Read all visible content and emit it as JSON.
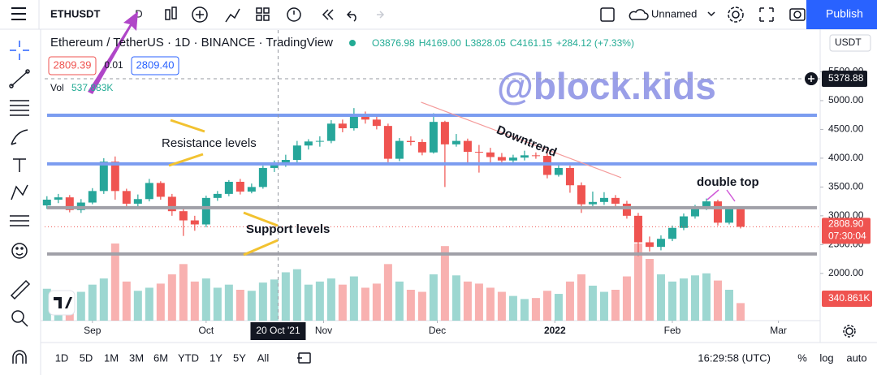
{
  "ui": {
    "symbol": "ETHUSDT",
    "interval": "D",
    "layout_name": "Unnamed",
    "publish": "Publish",
    "legend_title": "Ethereum / TetherUS · 1D · BINANCE · TradingView",
    "ohlc": [
      "O3876.98",
      "H4169.00",
      "L3828.05",
      "C4161.15",
      "+284.12 (+7.33%)"
    ],
    "sell": "2809.39",
    "spread": "0.01",
    "buy": "2809.40",
    "vol_label": "Vol",
    "vol_value": "537.883K",
    "currency": "USDT",
    "timeframes": [
      "1D",
      "5D",
      "1M",
      "3M",
      "6M",
      "YTD",
      "1Y",
      "5Y",
      "All"
    ],
    "clock": "16:29:58 (UTC)",
    "scale_options": [
      "%",
      "log",
      "auto"
    ]
  },
  "chart_data": {
    "type": "candlestick",
    "watermark": "@block.kids",
    "categories": [
      null,
      null,
      null,
      null,
      null,
      null,
      null,
      null,
      null,
      null,
      null,
      null,
      null,
      null,
      null,
      null,
      null,
      null,
      null,
      null,
      null,
      null,
      null,
      null,
      null,
      null,
      null,
      null,
      null,
      null,
      null,
      null,
      null,
      null,
      null,
      null,
      null,
      null,
      null,
      null,
      null,
      null,
      null,
      null,
      null,
      null,
      null,
      null,
      null,
      null,
      null,
      null,
      null,
      null,
      null,
      null,
      null,
      null,
      null,
      null,
      null,
      null
    ],
    "open": [
      3180,
      3280,
      3320,
      3100,
      3230,
      3430,
      3940,
      3430,
      3210,
      3290,
      3570,
      3330,
      3080,
      2920,
      2850,
      3310,
      3380,
      3590,
      3420,
      3500,
      3830,
      3880,
      3970,
      4220,
      4290,
      4300,
      4600,
      4520,
      4730,
      4670,
      4560,
      3990,
      4300,
      4280,
      4100,
      4630,
      4240,
      4300,
      4110,
      4100,
      4020,
      3960,
      4010,
      4050,
      4040,
      3710,
      3830,
      3530,
      3200,
      3240,
      3310,
      3210,
      3000,
      2540,
      2460,
      2600,
      2790,
      2990,
      3140,
      3250,
      2880,
      3120
    ],
    "high": [
      3340,
      3380,
      3360,
      3290,
      3480,
      4000,
      4030,
      3470,
      3370,
      3640,
      3600,
      3380,
      3120,
      3000,
      3350,
      3430,
      3620,
      3640,
      3560,
      3870,
      3960,
      4060,
      4300,
      4330,
      4380,
      4660,
      4670,
      4870,
      4810,
      4720,
      4600,
      4350,
      4380,
      4330,
      4780,
      4650,
      4420,
      4340,
      4230,
      4180,
      4090,
      4060,
      4130,
      4100,
      4090,
      3880,
      3870,
      3580,
      3420,
      3410,
      3360,
      3260,
      3050,
      2640,
      2660,
      2830,
      3040,
      3190,
      3300,
      3280,
      3160,
      3150
    ],
    "low": [
      3120,
      3220,
      3060,
      3050,
      3200,
      3380,
      3280,
      3150,
      3160,
      3250,
      3280,
      3000,
      2650,
      2740,
      2800,
      3260,
      3340,
      3370,
      3390,
      3470,
      3760,
      3850,
      3920,
      4150,
      4200,
      4260,
      4450,
      4480,
      4600,
      4500,
      3930,
      3950,
      4220,
      4050,
      4080,
      3500,
      4200,
      3920,
      3750,
      3880,
      3900,
      3920,
      3960,
      3990,
      3650,
      3680,
      3400,
      3050,
      3120,
      3190,
      3150,
      2950,
      2300,
      2380,
      2400,
      2560,
      2750,
      2950,
      3100,
      2830,
      2850,
      2780
    ],
    "close": [
      3280,
      3320,
      3100,
      3230,
      3430,
      3940,
      3430,
      3210,
      3290,
      3570,
      3330,
      3080,
      2920,
      2850,
      3310,
      3380,
      3590,
      3420,
      3500,
      3830,
      3880,
      3970,
      4220,
      4290,
      4300,
      4600,
      4520,
      4730,
      4670,
      4560,
      3990,
      4300,
      4280,
      4100,
      4630,
      4240,
      4300,
      4110,
      4100,
      4020,
      3960,
      4010,
      4050,
      4040,
      3710,
      3830,
      3530,
      3200,
      3240,
      3310,
      3210,
      3000,
      2540,
      2460,
      2600,
      2790,
      2990,
      3140,
      3250,
      2880,
      3120,
      2808.9
    ],
    "volume": [
      620000,
      540000,
      480000,
      560000,
      700000,
      820000,
      1500000,
      760000,
      580000,
      640000,
      720000,
      900000,
      1100000,
      760000,
      820000,
      640000,
      700000,
      600000,
      580000,
      740000,
      800000,
      940000,
      1000000,
      700000,
      760000,
      820000,
      700000,
      860000,
      640000,
      720000,
      1100000,
      760000,
      600000,
      560000,
      900000,
      1450000,
      880000,
      760000,
      720000,
      640000,
      560000,
      480000,
      420000,
      440000,
      580000,
      520000,
      760000,
      900000,
      680000,
      560000,
      600000,
      860000,
      1500000,
      1200000,
      900000,
      760000,
      820000,
      880000,
      920000,
      780000,
      600000,
      340861
    ],
    "up_color": "#26a69a",
    "down_color": "#ef5350",
    "xlim": [
      -0.2,
      68
    ],
    "xticks": [
      {
        "value": 4,
        "label": "Sep"
      },
      {
        "value": 14,
        "label": "Oct"
      },
      {
        "value": 24.33,
        "label": "Nov"
      },
      {
        "value": 34.33,
        "label": "Dec"
      },
      {
        "value": 44.67,
        "label": "2022"
      },
      {
        "value": 55,
        "label": "Feb"
      },
      {
        "value": 64.33,
        "label": "Mar"
      }
    ],
    "ylim": [
      1180,
      6225
    ],
    "yticks": [
      {
        "value": 2000,
        "label": "2000.00"
      },
      {
        "value": 2500,
        "label": "2500.00"
      },
      {
        "value": 3000,
        "label": "3000.00"
      },
      {
        "value": 3500,
        "label": "3500.00"
      },
      {
        "value": 4000,
        "label": "4000.00"
      },
      {
        "value": 4500,
        "label": "4500.00"
      },
      {
        "value": 5000,
        "label": "5000.00"
      },
      {
        "value": 5500,
        "label": "5500.00"
      }
    ],
    "price_tag": "2808.90",
    "countdown": "07:30:04",
    "volume_tag": "340.861K",
    "crosshair": {
      "x": 20.33,
      "x_label": "20 Oct '21",
      "price": 5378.88,
      "price_label": "5378.88"
    },
    "hlines": [
      {
        "value": 4746,
        "color": "#7b9cf0"
      },
      {
        "value": 3901,
        "color": "#7b9cf0"
      },
      {
        "value": 3141,
        "color": "#a0a0a8"
      },
      {
        "value": 2338,
        "color": "#a0a0a8"
      }
    ],
    "trendline": {
      "x": [
        32.9,
        50.5
      ],
      "y": [
        4972,
        3662
      ],
      "color": "#f49a9a"
    },
    "annotations": [
      "Resistance levels",
      "Support levels",
      "Downtrend",
      "double top"
    ]
  }
}
